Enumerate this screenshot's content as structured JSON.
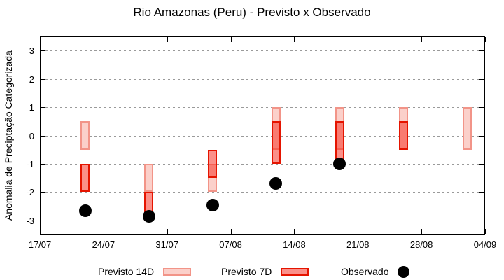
{
  "chart": {
    "title": "Rio Amazonas (Peru) - Previsto x Observado",
    "ylabel": "Anomalia de Preciptação Categorizada",
    "colors": {
      "forecast14d_fill": "#fbd0ca",
      "forecast14d_border": "#f29488",
      "forecast7d_fill": "rgba(248,52,40,0.55)",
      "forecast7d_border": "#e51400",
      "observed": "#000000",
      "grid": "#9a9a9a",
      "axis": "#000000"
    }
  },
  "chart_data": {
    "type": "range-bar+scatter",
    "title": "Rio Amazonas (Peru) - Previsto x Observado",
    "xlabel": "",
    "ylabel": "Anomalia de Preciptação Categorizada",
    "ylim": [
      -3.5,
      3.5
    ],
    "yticks": [
      3,
      2,
      1,
      0,
      -1,
      -2,
      -3
    ],
    "grid": "horizontal-dotted",
    "legend_position": "bottom",
    "x_axis": {
      "domain_days": 49,
      "tick_interval_days": 7,
      "tick_labels": [
        "17/07",
        "24/07",
        "31/07",
        "07/08",
        "14/08",
        "21/08",
        "28/08",
        "04/09"
      ]
    },
    "series": [
      {
        "name": "Previsto 14D",
        "type": "range-bar",
        "fill": "#fbd0ca",
        "border": "#f29488",
        "points": [
          {
            "date": "22/07",
            "day": 5,
            "low": -0.5,
            "high": 0.5
          },
          {
            "date": "29/07",
            "day": 12,
            "low": -2.0,
            "high": -1.0
          },
          {
            "date": "05/08",
            "day": 19,
            "low": -2.0,
            "high": -1.0
          },
          {
            "date": "12/08",
            "day": 26,
            "low": -0.5,
            "high": 1.0
          },
          {
            "date": "19/08",
            "day": 33,
            "low": -0.5,
            "high": 1.0
          },
          {
            "date": "26/08",
            "day": 40,
            "low": -0.5,
            "high": 1.0
          },
          {
            "date": "02/09",
            "day": 47,
            "low": -0.5,
            "high": 1.0
          }
        ]
      },
      {
        "name": "Previsto 7D",
        "type": "range-bar",
        "fill": "rgba(248,52,40,0.55)",
        "border": "#e51400",
        "points": [
          {
            "date": "22/07",
            "day": 5,
            "low": -2.0,
            "high": -1.0
          },
          {
            "date": "29/07",
            "day": 12,
            "low": -3.0,
            "high": -2.0
          },
          {
            "date": "05/08",
            "day": 19,
            "low": -1.5,
            "high": -0.5
          },
          {
            "date": "12/08",
            "day": 26,
            "low": -1.0,
            "high": 0.5
          },
          {
            "date": "19/08",
            "day": 33,
            "low": -1.0,
            "high": 0.5
          },
          {
            "date": "26/08",
            "day": 40,
            "low": -0.5,
            "high": 0.5
          }
        ]
      },
      {
        "name": "Observado",
        "type": "scatter",
        "color": "#000000",
        "points": [
          {
            "date": "22/07",
            "day": 5,
            "value": -2.65
          },
          {
            "date": "29/07",
            "day": 12,
            "value": -2.85
          },
          {
            "date": "05/08",
            "day": 19,
            "value": -2.45
          },
          {
            "date": "12/08",
            "day": 26,
            "value": -1.7
          },
          {
            "date": "19/08",
            "day": 33,
            "value": -1.0
          }
        ]
      }
    ]
  }
}
